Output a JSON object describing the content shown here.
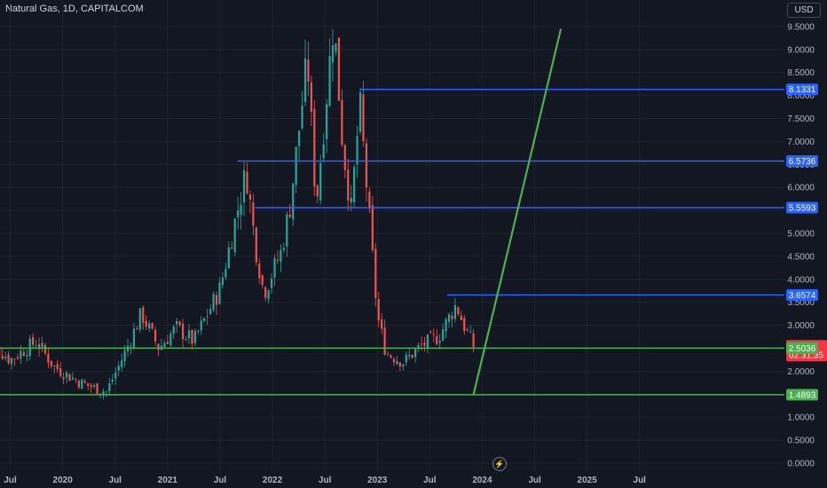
{
  "header": {
    "title": "Natural Gas, 1D, CAPITALCOM",
    "currency": "USD"
  },
  "icons": {
    "bolt": "bolt-icon"
  },
  "colors": {
    "background": "#131722",
    "up": "#26a69a",
    "down": "#ef5350",
    "blue_line": "#2962ff",
    "green_line": "#4caf50",
    "price_label": "#f23645"
  },
  "chart_data": {
    "type": "candlestick",
    "title": "Natural Gas, 1D, CAPITALCOM",
    "x_axis": {
      "ticks": [
        "Jul",
        "2020",
        "Jul",
        "2021",
        "Jul",
        "2022",
        "Jul",
        "2023",
        "Jul",
        "2024",
        "Jul",
        "2025",
        "Jul"
      ],
      "range": [
        "2019-04",
        "2025-10"
      ]
    },
    "y_axis": {
      "ticks": [
        "9.5000",
        "9.0000",
        "8.5000",
        "8.0000",
        "7.5000",
        "7.0000",
        "6.5000",
        "6.0000",
        "5.5000",
        "5.0000",
        "4.5000",
        "4.0000",
        "3.5000",
        "3.0000",
        "2.5000",
        "2.0000",
        "1.5000",
        "1.0000",
        "0.5000",
        "0.0000"
      ],
      "range": [
        0,
        10.0
      ]
    },
    "price_path": [
      {
        "x": "2019-04",
        "y": 2.75
      },
      {
        "x": "2019-07",
        "y": 2.25
      },
      {
        "x": "2019-10",
        "y": 2.65
      },
      {
        "x": "2019-12",
        "y": 2.1
      },
      {
        "x": "2020-03",
        "y": 1.75
      },
      {
        "x": "2020-06",
        "y": 1.55
      },
      {
        "x": "2020-08",
        "y": 2.35
      },
      {
        "x": "2020-10",
        "y": 3.25
      },
      {
        "x": "2020-12",
        "y": 2.5
      },
      {
        "x": "2021-02",
        "y": 2.95
      },
      {
        "x": "2021-04",
        "y": 2.65
      },
      {
        "x": "2021-07",
        "y": 3.8
      },
      {
        "x": "2021-10",
        "y": 6.35
      },
      {
        "x": "2021-11",
        "y": 4.8
      },
      {
        "x": "2021-12",
        "y": 3.7
      },
      {
        "x": "2022-02",
        "y": 4.6
      },
      {
        "x": "2022-03",
        "y": 5.6
      },
      {
        "x": "2022-05",
        "y": 8.8
      },
      {
        "x": "2022-06",
        "y": 5.6
      },
      {
        "x": "2022-08",
        "y": 9.65
      },
      {
        "x": "2022-09",
        "y": 7.0
      },
      {
        "x": "2022-10",
        "y": 5.5
      },
      {
        "x": "2022-11",
        "y": 7.8
      },
      {
        "x": "2022-12",
        "y": 5.5
      },
      {
        "x": "2023-01",
        "y": 3.2
      },
      {
        "x": "2023-02",
        "y": 2.4
      },
      {
        "x": "2023-04",
        "y": 2.2
      },
      {
        "x": "2023-06",
        "y": 2.55
      },
      {
        "x": "2023-08",
        "y": 2.75
      },
      {
        "x": "2023-10",
        "y": 3.45
      },
      {
        "x": "2023-11",
        "y": 2.95
      },
      {
        "x": "2023-12",
        "y": 2.55
      }
    ],
    "horizontal_levels": [
      {
        "value": 8.1331,
        "label": "8.1331",
        "color": "blue",
        "from": "2022-11"
      },
      {
        "value": 6.5736,
        "label": "6.5736",
        "color": "blue",
        "from": "2021-09"
      },
      {
        "value": 5.5593,
        "label": "5.5593",
        "color": "blue",
        "from": "2021-11"
      },
      {
        "value": 3.6574,
        "label": "3.6574",
        "color": "blue",
        "from": "2023-09"
      },
      {
        "value": 2.5036,
        "label": "2.5036",
        "color": "green",
        "from": "2019-04"
      },
      {
        "value": 1.4893,
        "label": "1.4893",
        "color": "green",
        "from": "2019-04"
      }
    ],
    "trend_line": {
      "from": {
        "x": "2023-12",
        "y": 1.49
      },
      "to": {
        "x": "2024-10",
        "y": 9.45
      },
      "color": "green"
    },
    "last_price": {
      "value": 2.554,
      "label": "2.5540",
      "countdown": "02:31:35"
    }
  }
}
